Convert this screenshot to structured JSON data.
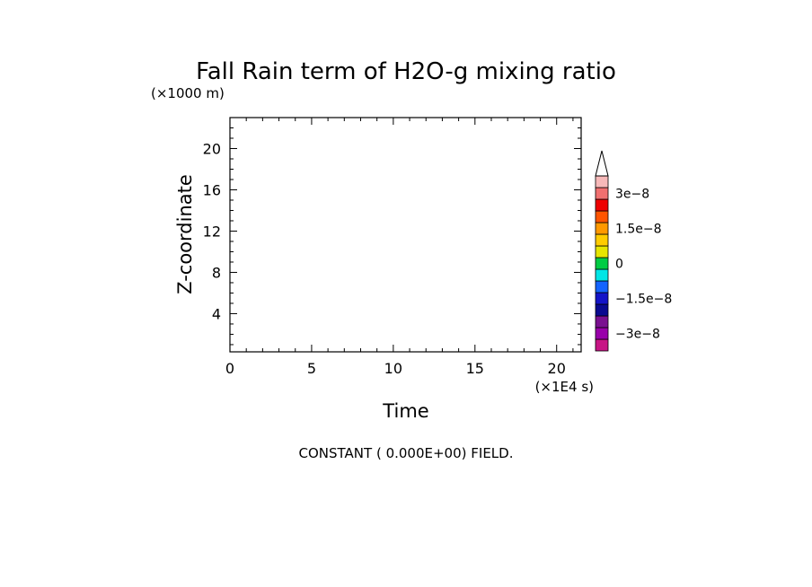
{
  "chart_data": {
    "type": "heatmap",
    "title": "Fall Rain term of H2O-g mixing ratio",
    "xlabel": "Time",
    "ylabel": "Z-coordinate",
    "x_unit": "(×1E4 s)",
    "y_unit": "(×1000 m)",
    "xlim": [
      0,
      21.5
    ],
    "ylim": [
      0.3,
      23
    ],
    "x_ticks": [
      0,
      5,
      10,
      15,
      20
    ],
    "y_ticks": [
      4,
      8,
      12,
      16,
      20
    ],
    "x_minor_step": 1,
    "y_minor_step": 1,
    "field_note": "CONSTANT ( 0.000E+00) FIELD.",
    "field_value": 0,
    "colorbar": {
      "colors": [
        "#c71585",
        "#9900aa",
        "#7a1090",
        "#0a0a90",
        "#1414c8",
        "#1464ff",
        "#00e6e6",
        "#00cc44",
        "#e6e600",
        "#ffcc00",
        "#ff9900",
        "#ff5500",
        "#ee0000",
        "#f07070",
        "#f7b9b9"
      ],
      "labels": [
        "3e−8",
        "1.5e−8",
        "0",
        "−1.5e−8",
        "−3e−8"
      ],
      "label_values": [
        3e-08,
        1.5e-08,
        0,
        -1.5e-08,
        -3e-08
      ],
      "range": [
        -3.75e-08,
        3.75e-08
      ],
      "extend_top": true
    }
  }
}
